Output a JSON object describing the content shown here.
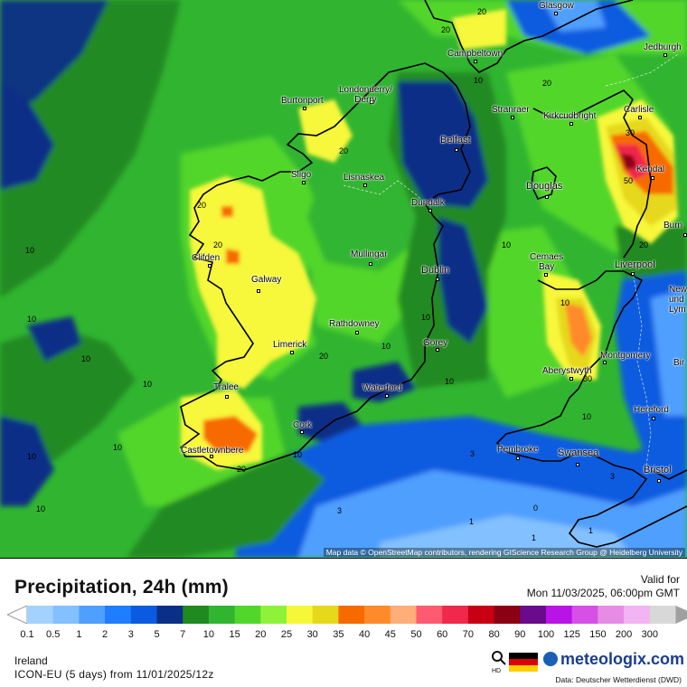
{
  "map": {
    "attribution": "Map data © OpenStreetMap contributors, rendering GIScience Research Group @ Heidelberg University",
    "places": [
      {
        "id": "glasgow",
        "name": "Glasgow"
      },
      {
        "id": "jedburgh",
        "name": "Jedburgh"
      },
      {
        "id": "campbeltown",
        "name": "Campbeltown"
      },
      {
        "id": "burtonport",
        "name": "Burtonport"
      },
      {
        "id": "londonderry",
        "name": "Londonderry/\nDerry"
      },
      {
        "id": "stranraer",
        "name": "Stranraer"
      },
      {
        "id": "kirkcudbright",
        "name": "Kirkcudbright"
      },
      {
        "id": "carlisle",
        "name": "Carlisle"
      },
      {
        "id": "belfast",
        "name": "Belfast"
      },
      {
        "id": "kendal",
        "name": "Kendal"
      },
      {
        "id": "sligo",
        "name": "Sligo"
      },
      {
        "id": "lisnaskea",
        "name": "Lisnaskea"
      },
      {
        "id": "douglas",
        "name": "Douglas"
      },
      {
        "id": "dundalk",
        "name": "Dundalk"
      },
      {
        "id": "burn",
        "name": "Burn"
      },
      {
        "id": "clifden",
        "name": "Clifden"
      },
      {
        "id": "mullingar",
        "name": "Mullingar"
      },
      {
        "id": "cemaes",
        "name": "Cemaes\nBay"
      },
      {
        "id": "liverpool",
        "name": "Liverpool"
      },
      {
        "id": "galway",
        "name": "Galway"
      },
      {
        "id": "dublin",
        "name": "Dublin"
      },
      {
        "id": "newcastle",
        "name": "Newca\nund\nLym"
      },
      {
        "id": "rathdowney",
        "name": "Rathdowney"
      },
      {
        "id": "limerick",
        "name": "Limerick"
      },
      {
        "id": "gorey",
        "name": "Gorey"
      },
      {
        "id": "montgomery",
        "name": "Montgomery"
      },
      {
        "id": "aberystwyth",
        "name": "Aberystwyth"
      },
      {
        "id": "bir",
        "name": "Bir"
      },
      {
        "id": "tralee",
        "name": "Tralee"
      },
      {
        "id": "waterford",
        "name": "Waterford"
      },
      {
        "id": "hereford",
        "name": "Hereford"
      },
      {
        "id": "cork",
        "name": "Cork"
      },
      {
        "id": "castletownbere",
        "name": "Castletownbere"
      },
      {
        "id": "pembroke",
        "name": "Pembroke"
      },
      {
        "id": "swansea",
        "name": "Swansea"
      },
      {
        "id": "bristol",
        "name": "Bristol"
      }
    ],
    "contour_labels": [
      "20",
      "20",
      "20",
      "20",
      "20",
      "10",
      "10",
      "10",
      "10",
      "10",
      "10",
      "10",
      "10",
      "30",
      "50",
      "20",
      "20",
      "30",
      "10",
      "10",
      "20",
      "10",
      "20",
      "10",
      "3",
      "3",
      "1",
      "1",
      "1",
      "3",
      "0",
      "10",
      "10",
      "10"
    ]
  },
  "legend": {
    "title": "Precipitation, 24h (mm)",
    "valid_label": "Valid for",
    "valid_date": "Mon 11/03/2025, 06:00pm GMT",
    "ticks": [
      "0.1",
      "0.5",
      "1",
      "2",
      "3",
      "5",
      "7",
      "10",
      "15",
      "20",
      "25",
      "30",
      "35",
      "40",
      "45",
      "50",
      "60",
      "70",
      "80",
      "90",
      "100",
      "125",
      "150",
      "200",
      "300"
    ],
    "colors": [
      "#a3d2ff",
      "#82c0ff",
      "#4f9fff",
      "#1f7dff",
      "#0a5be0",
      "#0a2f87",
      "#208a20",
      "#31b531",
      "#52d62c",
      "#8ff23a",
      "#f7f73a",
      "#e6d81a",
      "#f76a00",
      "#ff8a2a",
      "#ffae7a",
      "#ff5a72",
      "#f0284a",
      "#c80014",
      "#8c0014",
      "#6a0a8c",
      "#b914e6",
      "#d750e6",
      "#e68ce6",
      "#f2b4f2",
      "#d8d8d8",
      "#a0a0a0"
    ],
    "region": "Ireland",
    "model": "ICON-EU (5 days) from 11/01/2025/12z",
    "brand": "meteologix.com",
    "source": "Data: Deutscher Wetterdienst (DWD)",
    "icons": {
      "zoom": "hd-zoom-icon",
      "flag": "german-flag-icon",
      "logo": "meteologix-logo-icon"
    }
  }
}
